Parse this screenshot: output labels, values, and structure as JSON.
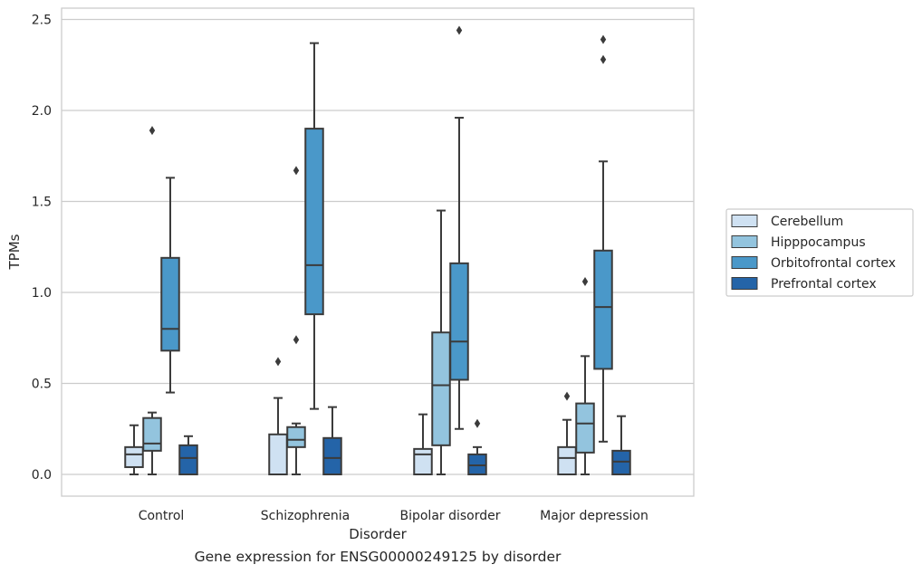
{
  "caption": "Gene expression for ENSG00000249125 by disorder",
  "chart_data": {
    "type": "box",
    "xlabel": "Disorder",
    "ylabel": "TPMs",
    "ylim": [
      -0.12,
      2.57
    ],
    "yticks": [
      0.0,
      0.5,
      1.0,
      1.5,
      2.0,
      2.5
    ],
    "ytick_labels": [
      "0.0",
      "0.5",
      "1.0",
      "1.5",
      "2.0",
      "2.5"
    ],
    "grid": "horizontal",
    "legend_position": "right",
    "categories": [
      "Control",
      "Schizophrenia",
      "Bipolar disorder",
      "Major depression"
    ],
    "series": [
      {
        "name": "Cerebellum",
        "color": "#cfe1f2",
        "boxes": [
          {
            "whislo": 0.0,
            "q1": 0.04,
            "med": 0.11,
            "q3": 0.15,
            "whishi": 0.27,
            "fliers": []
          },
          {
            "whislo": 0.0,
            "q1": 0.0,
            "med": 0.0,
            "q3": 0.22,
            "whishi": 0.42,
            "fliers": [
              0.62
            ]
          },
          {
            "whislo": 0.0,
            "q1": 0.0,
            "med": 0.11,
            "q3": 0.14,
            "whishi": 0.33,
            "fliers": []
          },
          {
            "whislo": 0.0,
            "q1": 0.0,
            "med": 0.09,
            "q3": 0.15,
            "whishi": 0.3,
            "fliers": [
              0.43
            ]
          }
        ]
      },
      {
        "name": "Hipppocampus",
        "color": "#93c4de",
        "boxes": [
          {
            "whislo": 0.0,
            "q1": 0.13,
            "med": 0.17,
            "q3": 0.31,
            "whishi": 0.34,
            "fliers": [
              1.89
            ]
          },
          {
            "whislo": 0.0,
            "q1": 0.15,
            "med": 0.19,
            "q3": 0.26,
            "whishi": 0.28,
            "fliers": [
              0.74,
              1.67
            ]
          },
          {
            "whislo": 0.0,
            "q1": 0.16,
            "med": 0.49,
            "q3": 0.78,
            "whishi": 1.45,
            "fliers": []
          },
          {
            "whislo": 0.0,
            "q1": 0.12,
            "med": 0.28,
            "q3": 0.39,
            "whishi": 0.65,
            "fliers": [
              1.06
            ]
          }
        ]
      },
      {
        "name": "Orbitofrontal cortex",
        "color": "#4a98c9",
        "boxes": [
          {
            "whislo": 0.45,
            "q1": 0.68,
            "med": 0.8,
            "q3": 1.19,
            "whishi": 1.63,
            "fliers": []
          },
          {
            "whislo": 0.36,
            "q1": 0.88,
            "med": 1.15,
            "q3": 1.9,
            "whishi": 2.37,
            "fliers": []
          },
          {
            "whislo": 0.25,
            "q1": 0.52,
            "med": 0.73,
            "q3": 1.16,
            "whishi": 1.96,
            "fliers": [
              2.44
            ]
          },
          {
            "whislo": 0.18,
            "q1": 0.58,
            "med": 0.92,
            "q3": 1.23,
            "whishi": 1.72,
            "fliers": [
              2.28,
              2.39
            ]
          }
        ]
      },
      {
        "name": "Prefrontal cortex",
        "color": "#2464a8",
        "boxes": [
          {
            "whislo": 0.0,
            "q1": 0.0,
            "med": 0.09,
            "q3": 0.16,
            "whishi": 0.21,
            "fliers": []
          },
          {
            "whislo": 0.0,
            "q1": 0.0,
            "med": 0.09,
            "q3": 0.2,
            "whishi": 0.37,
            "fliers": []
          },
          {
            "whislo": 0.0,
            "q1": 0.0,
            "med": 0.05,
            "q3": 0.11,
            "whishi": 0.15,
            "fliers": [
              0.28
            ]
          },
          {
            "whislo": 0.0,
            "q1": 0.0,
            "med": 0.07,
            "q3": 0.13,
            "whishi": 0.32,
            "fliers": []
          }
        ]
      }
    ]
  }
}
